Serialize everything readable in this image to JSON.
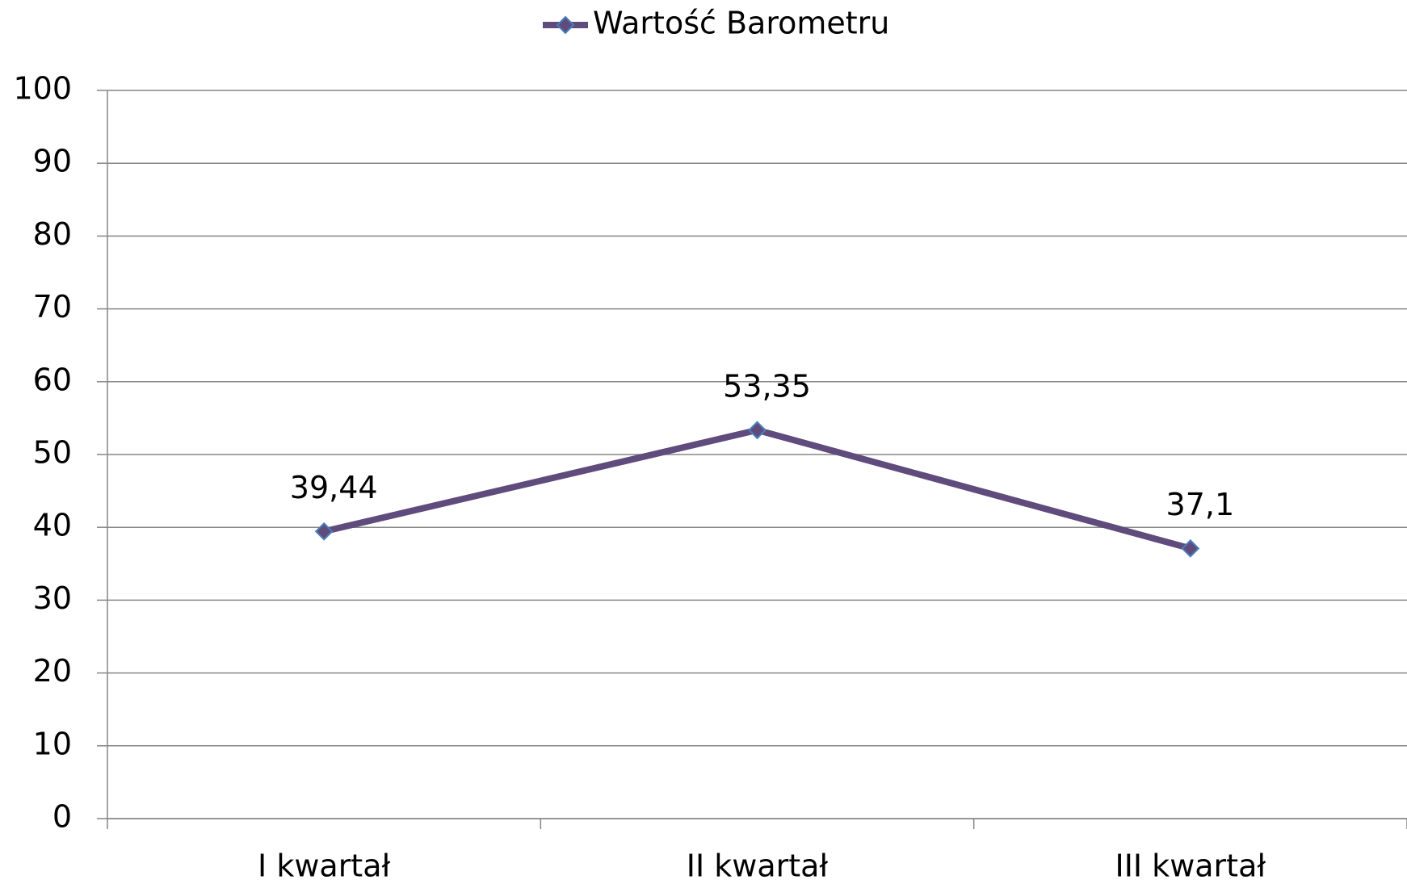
{
  "chart_data": {
    "type": "line",
    "categories": [
      "I kwartał",
      "II kwartał",
      "III kwartał"
    ],
    "series": [
      {
        "name": "Wartość Barometru",
        "color": "#5f4b7c",
        "marker_edge": "#4a7ebb",
        "values": [
          39.44,
          53.35,
          37.1
        ],
        "value_labels": [
          "39,44",
          "53,35",
          "37,1"
        ]
      }
    ],
    "ylim": [
      0,
      100
    ],
    "yticks": [
      0,
      10,
      20,
      30,
      40,
      50,
      60,
      70,
      80,
      90,
      100
    ],
    "grid": true,
    "legend": "top"
  }
}
